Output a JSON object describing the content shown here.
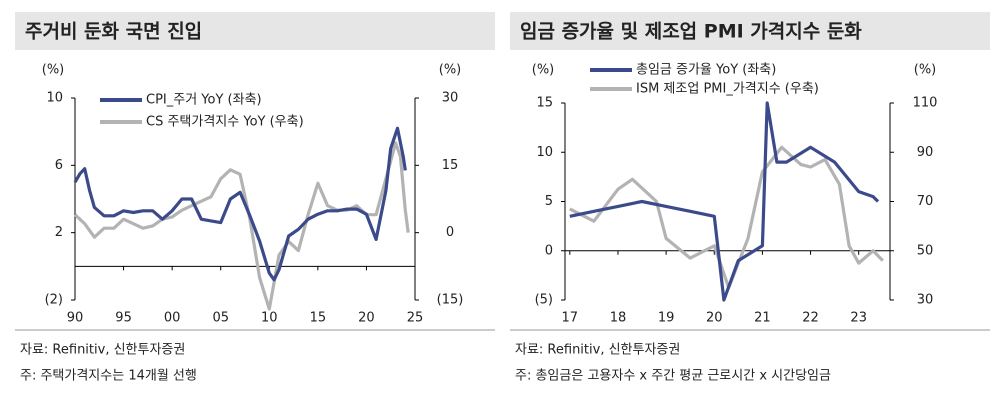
{
  "chart_data": [
    {
      "type": "line",
      "title": "주거비 둔화 국면 진입",
      "y_unit": "(%)",
      "y2_unit": "(%)",
      "xlim": [
        1990,
        2025
      ],
      "xticks": [
        {
          "value": 1990,
          "label": "90"
        },
        {
          "value": 1995,
          "label": "95"
        },
        {
          "value": 2000,
          "label": "00"
        },
        {
          "value": 2005,
          "label": "05"
        },
        {
          "value": 2010,
          "label": "10"
        },
        {
          "value": 2015,
          "label": "15"
        },
        {
          "value": 2020,
          "label": "20"
        },
        {
          "value": 2025,
          "label": "25"
        }
      ],
      "ylim": [
        -2,
        10
      ],
      "yticks": [
        {
          "value": -2,
          "label": "(2)"
        },
        2,
        6,
        10
      ],
      "y2lim": [
        -15,
        30
      ],
      "y2ticks": [
        {
          "value": -15,
          "label": "(15)"
        },
        0,
        15,
        30
      ],
      "legend": "top-left",
      "series": [
        {
          "name": "CPI_주거 YoY (좌축)",
          "color": "#3b4a8a",
          "x": [
            1990,
            1990.5,
            1991,
            1991.5,
            1992,
            1993,
            1994,
            1995,
            1996,
            1997,
            1998,
            1999,
            2000,
            2001,
            2002,
            2003,
            2004,
            2005,
            2006,
            2007,
            2008,
            2009,
            2010,
            2010.5,
            2011,
            2012,
            2013,
            2014,
            2015,
            2016,
            2017,
            2018,
            2019,
            2020,
            2021,
            2022,
            2022.5,
            2023.2,
            2023.8,
            2024
          ],
          "values": [
            5.0,
            5.5,
            5.8,
            4.5,
            3.5,
            3.0,
            3.0,
            3.3,
            3.2,
            3.3,
            3.3,
            2.8,
            3.3,
            4.0,
            4.0,
            2.8,
            2.7,
            2.6,
            4.0,
            4.4,
            3.0,
            1.5,
            -0.4,
            -0.8,
            -0.2,
            1.8,
            2.2,
            2.8,
            3.1,
            3.3,
            3.3,
            3.4,
            3.4,
            3.1,
            1.6,
            4.5,
            7.0,
            8.2,
            6.5,
            5.7
          ]
        },
        {
          "name": "CS 주택가격지수 YoY (우축)",
          "color": "#b3b3b3",
          "axis": "y2",
          "x": [
            1990,
            1991,
            1992,
            1993,
            1994,
            1995,
            1996,
            1997,
            1998,
            1999,
            2000,
            2001,
            2002,
            2003,
            2004,
            2005,
            2006,
            2007,
            2008,
            2009,
            2010,
            2011,
            2012,
            2013,
            2014,
            2015,
            2016,
            2017,
            2018,
            2019,
            2020,
            2021,
            2022,
            2023,
            2023.5,
            2024,
            2024.3
          ],
          "values": [
            4,
            2,
            -1,
            1,
            1,
            3,
            2,
            1,
            1.5,
            3,
            3.5,
            5,
            6,
            7,
            8,
            12,
            14,
            13,
            3,
            -10,
            -17,
            -5,
            -2,
            -4,
            4,
            11,
            6,
            5,
            5,
            6,
            4,
            4,
            12,
            20,
            17,
            5,
            0
          ]
        }
      ],
      "source": "자료: Refinitiv, 신한투자증권",
      "note": "주: 주택가격지수는 14개월 선행"
    },
    {
      "type": "line",
      "title": "임금 증가율 및 제조업 PMI 가격지수 둔화",
      "y_unit": "(%)",
      "y2_unit": "(%)",
      "xlim": [
        2016.9,
        2023.65
      ],
      "xticks": [
        {
          "value": 2017,
          "label": "17"
        },
        {
          "value": 2018,
          "label": "18"
        },
        {
          "value": 2019,
          "label": "19"
        },
        {
          "value": 2020,
          "label": "20"
        },
        {
          "value": 2021,
          "label": "21"
        },
        {
          "value": 2022,
          "label": "22"
        },
        {
          "value": 2023,
          "label": "23"
        }
      ],
      "ylim": [
        -5,
        15
      ],
      "yticks": [
        {
          "value": -5,
          "label": "(5)"
        },
        0,
        5,
        10,
        15
      ],
      "y2lim": [
        30,
        110
      ],
      "y2ticks": [
        30,
        50,
        70,
        90,
        110
      ],
      "legend": "top",
      "series": [
        {
          "name": "총임금 증가율 YoY (좌축)",
          "color": "#3b4a8a",
          "x": [
            2017,
            2017.5,
            2018,
            2018.5,
            2019,
            2019.5,
            2020,
            2020.2,
            2020.5,
            2021,
            2021.1,
            2021.3,
            2021.5,
            2022,
            2022.5,
            2023,
            2023.3,
            2023.4
          ],
          "values": [
            3.5,
            4,
            4.5,
            5,
            4.5,
            4,
            3.5,
            -5,
            -1,
            0.5,
            15,
            9,
            9,
            10.5,
            9,
            6,
            5.5,
            5
          ]
        },
        {
          "name": "ISM 제조업 PMI_가격지수 (우축)",
          "color": "#b3b3b3",
          "axis": "y2",
          "x": [
            2017,
            2017.5,
            2018,
            2018.3,
            2018.8,
            2019,
            2019.5,
            2020,
            2020.3,
            2020.7,
            2021,
            2021.4,
            2021.8,
            2022,
            2022.3,
            2022.6,
            2022.8,
            2023,
            2023.3,
            2023.5
          ],
          "values": [
            67,
            62,
            75,
            79,
            70,
            55,
            47,
            52,
            35,
            55,
            82,
            92,
            85,
            84,
            87,
            77,
            52,
            45,
            50,
            46
          ]
        }
      ],
      "source": "자료: Refinitiv, 신한투자증권",
      "note": "주: 총임금은 고용자수 x 주간 평균 근로시간 x 시간당임금"
    }
  ]
}
